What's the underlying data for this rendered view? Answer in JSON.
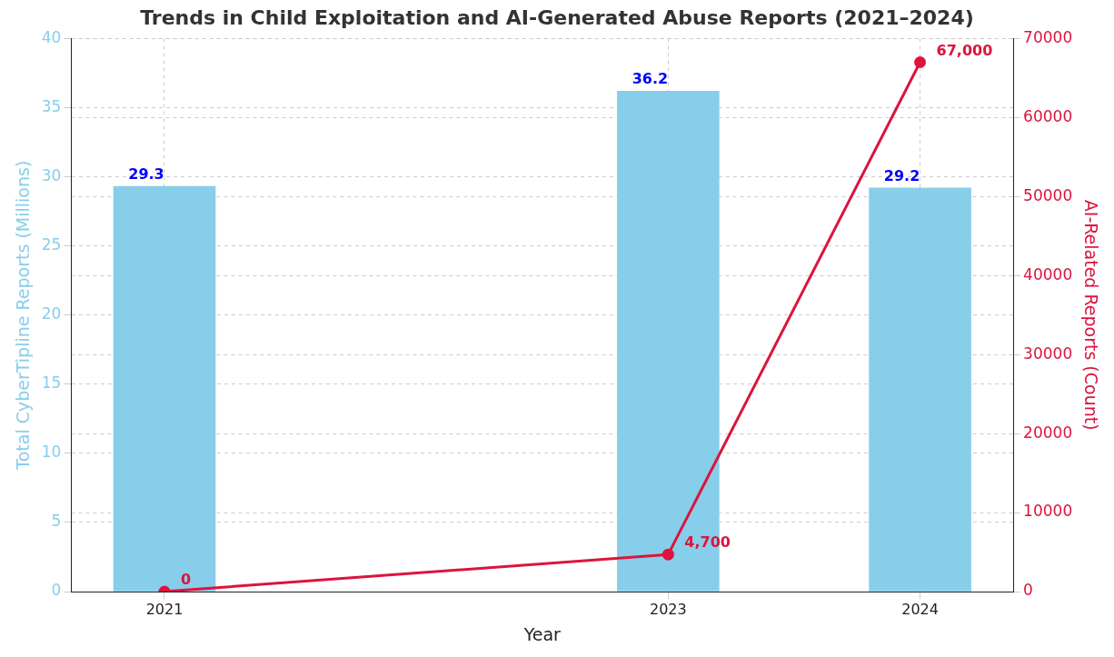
{
  "chart_data": {
    "type": "bar",
    "title": "Trends in Child Exploitation and AI-Generated Abuse Reports (2021–2024)",
    "xlabel": "Year",
    "ylabel": "Total CyberTipline Reports (Millions)",
    "y2label": "AI-Related Reports (Count)",
    "x": [
      2021,
      2023,
      2024
    ],
    "xlim": [
      2020.63,
      2024.37
    ],
    "xticks": [
      2021,
      2023,
      2024
    ],
    "ylim": [
      0,
      40
    ],
    "yticks": [
      0,
      5,
      10,
      15,
      20,
      25,
      30,
      35,
      40
    ],
    "y2lim": [
      0,
      70000
    ],
    "y2ticks": [
      0,
      10000,
      20000,
      30000,
      40000,
      50000,
      60000,
      70000
    ],
    "grid": true,
    "legend": false,
    "series": [
      {
        "color": "#87ceeb",
        "values": [
          29.3,
          36.2,
          29.2
        ],
        "value_labels": [
          "29.3",
          "36.2",
          "29.2"
        ]
      },
      {
        "type": "line",
        "axis": "y2",
        "color": "#dc143c",
        "marker": "circle",
        "line_style": "solid",
        "values": [
          0,
          4700,
          67000
        ],
        "value_labels": [
          "0",
          "4,700",
          "67,000"
        ]
      }
    ]
  }
}
